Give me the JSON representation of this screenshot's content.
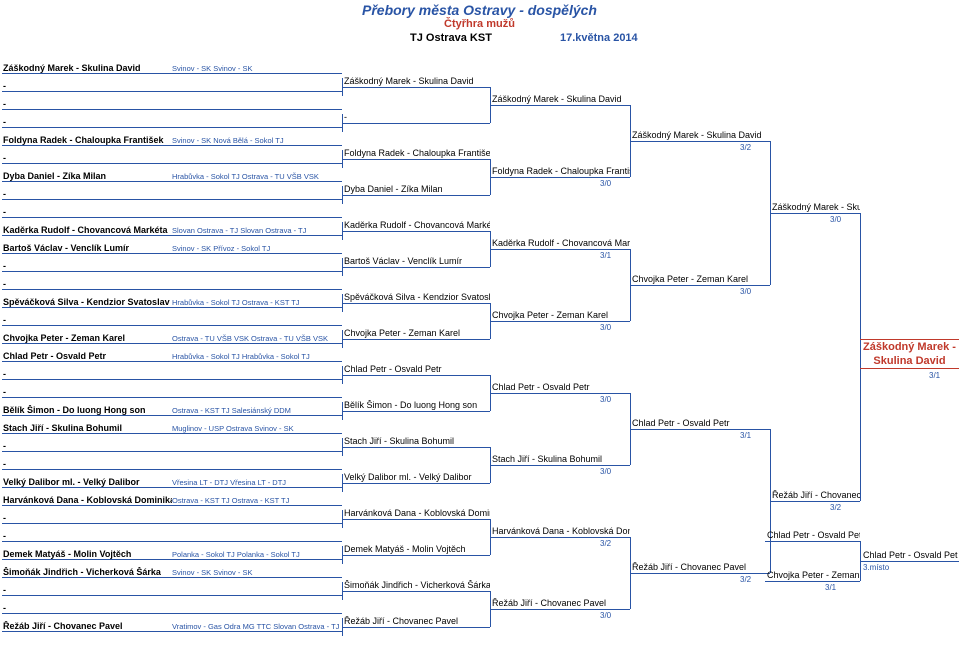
{
  "header": {
    "title_main": "Přebory města Ostravy - dospělých",
    "title_sub": "Čtyřhra mužů",
    "venue": "TJ Ostrava KST",
    "date": "17.května 2014"
  },
  "seeds": [
    {
      "player": "Záškodný Marek -  Skulina David",
      "club": "Svinov - SK Svinov - SK"
    },
    {
      "player": "-",
      "club": ""
    },
    {
      "player": "-",
      "club": ""
    },
    {
      "player": "-",
      "club": ""
    },
    {
      "player": "Foldyna Radek -  Chaloupka František",
      "club": "Svinov - SK Nová Bělá - Sokol TJ"
    },
    {
      "player": "-",
      "club": ""
    },
    {
      "player": "Dyba Daniel -  Zíka Milan",
      "club": "Hrabůvka - Sokol TJ Ostrava - TU VŠB VSK"
    },
    {
      "player": "-",
      "club": ""
    },
    {
      "player": "-",
      "club": ""
    },
    {
      "player": "Kaděrka Rudolf -  Chovancová Markéta",
      "club": "Slovan Ostrava - TJ Slovan Ostrava - TJ"
    },
    {
      "player": "Bartoš Václav -  Venclík Lumír",
      "club": "Svinov - SK Přívoz - Sokol TJ"
    },
    {
      "player": "-",
      "club": ""
    },
    {
      "player": "-",
      "club": ""
    },
    {
      "player": "Spěváčková Silva -  Kendzior Svatoslav",
      "club": "Hrabůvka - Sokol TJ Ostrava - KST TJ"
    },
    {
      "player": "-",
      "club": ""
    },
    {
      "player": "Chvojka Peter -  Zeman Karel",
      "club": "Ostrava - TU VŠB VSK Ostrava - TU VŠB VSK"
    },
    {
      "player": "Chlad Petr -  Osvald Petr",
      "club": "Hrabůvka - Sokol TJ        Hrabůvka - Sokol TJ"
    },
    {
      "player": "-",
      "club": ""
    },
    {
      "player": "-",
      "club": ""
    },
    {
      "player": "Bělík Šimon -  Do luong Hong son",
      "club": "Ostrava - KST TJ Salesiánský DDM"
    },
    {
      "player": "Stach Jiří -  Skulina Bohumil",
      "club": "Muglinov - USP Ostrava Svinov - SK"
    },
    {
      "player": "-",
      "club": ""
    },
    {
      "player": "-",
      "club": ""
    },
    {
      "player": "Velký Dalibor ml. -  Velký Dalibor",
      "club": "Vřesina LT - DTJ Vřesina LT - DTJ"
    },
    {
      "player": "Harvánková Dana -  Koblovská Dominika",
      "club": "Ostrava - KST TJ Ostrava - KST TJ"
    },
    {
      "player": "-",
      "club": ""
    },
    {
      "player": "-",
      "club": ""
    },
    {
      "player": "Demek Matyáš -  Molin Vojtěch",
      "club": "Polanka - Sokol TJ Polanka - Sokol TJ"
    },
    {
      "player": "Šimoňák Jindřich -  Vicherková Šárka",
      "club": "Svinov - SK Svinov - SK"
    },
    {
      "player": "-",
      "club": ""
    },
    {
      "player": "-",
      "club": ""
    },
    {
      "player": "Řežáb Jiří -  Chovanec Pavel",
      "club": "Vratimov - Gas Odra MG TTC Slovan Ostrava - TJ"
    }
  ],
  "round2": [
    {
      "text": "Záškodný Marek -  Skulina David"
    },
    {
      "text": "-"
    },
    {
      "text": "Foldyna Radek -  Chaloupka František"
    },
    {
      "text": "Dyba Daniel -  Zíka Milan"
    },
    {
      "text": "Kaděrka Rudolf -  Chovancová Markéta"
    },
    {
      "text": "Bartoš Václav -  Venclík Lumír"
    },
    {
      "text": "Spěváčková Silva -  Kendzior Svatoslav"
    },
    {
      "text": "Chvojka Peter -  Zeman Karel"
    },
    {
      "text": "Chlad Petr -  Osvald Petr"
    },
    {
      "text": "Bělík Šimon -  Do luong Hong son"
    },
    {
      "text": "Stach Jiří -  Skulina Bohumil"
    },
    {
      "text": "Velký Dalibor ml. -  Velký Dalibor"
    },
    {
      "text": "Harvánková Dana -  Koblovská Dominika"
    },
    {
      "text": "Demek Matyáš -  Molin Vojtěch"
    },
    {
      "text": "Šimoňák Jindřich -  Vicherková Šárka"
    },
    {
      "text": "Řežáb Jiří -  Chovanec Pavel"
    }
  ],
  "round3": [
    {
      "text": "Záškodný Marek -  Skulina David",
      "score": ""
    },
    {
      "text": "Foldyna Radek -  Chaloupka František",
      "score": "3/0"
    },
    {
      "text": "Kaděrka Rudolf -  Chovancová Markéta",
      "score": "3/1"
    },
    {
      "text": "Chvojka Peter -  Zeman Karel",
      "score": "3/0"
    },
    {
      "text": "Chlad Petr -  Osvald Petr",
      "score": "3/0"
    },
    {
      "text": "Stach Jiří -  Skulina Bohumil",
      "score": "3/0"
    },
    {
      "text": "Harvánková Dana -  Koblovská Dominika",
      "score": "3/2"
    },
    {
      "text": "Řežáb Jiří -  Chovanec Pavel",
      "score": "3/0"
    }
  ],
  "round4": [
    {
      "text": "Záškodný Marek -  Skulina David",
      "score": "3/2"
    },
    {
      "text": "Chvojka Peter -  Zeman Karel",
      "score": "3/0"
    },
    {
      "text": "Chlad Petr -  Osvald Petr",
      "score": "3/1"
    },
    {
      "text": "Řežáb Jiří -  Chovanec Pavel",
      "score": "3/2"
    }
  ],
  "round5": [
    {
      "text": "Záškodný Marek -  Skulina David",
      "score": "3/0"
    },
    {
      "text": "Řežáb Jiří -  Chovanec Pavel",
      "score": "3/2"
    }
  ],
  "winner": {
    "line1": "Záškodný Marek -",
    "line2": "Skulina David",
    "score": "3/1"
  },
  "third_match": {
    "p1": "Chlad Petr -  Osvald Petr",
    "p2": "Chvojka Peter -  Zeman Karel",
    "score": "3/1",
    "label": "3.místo",
    "result": "Chlad Petr -  Osvald Petr"
  }
}
